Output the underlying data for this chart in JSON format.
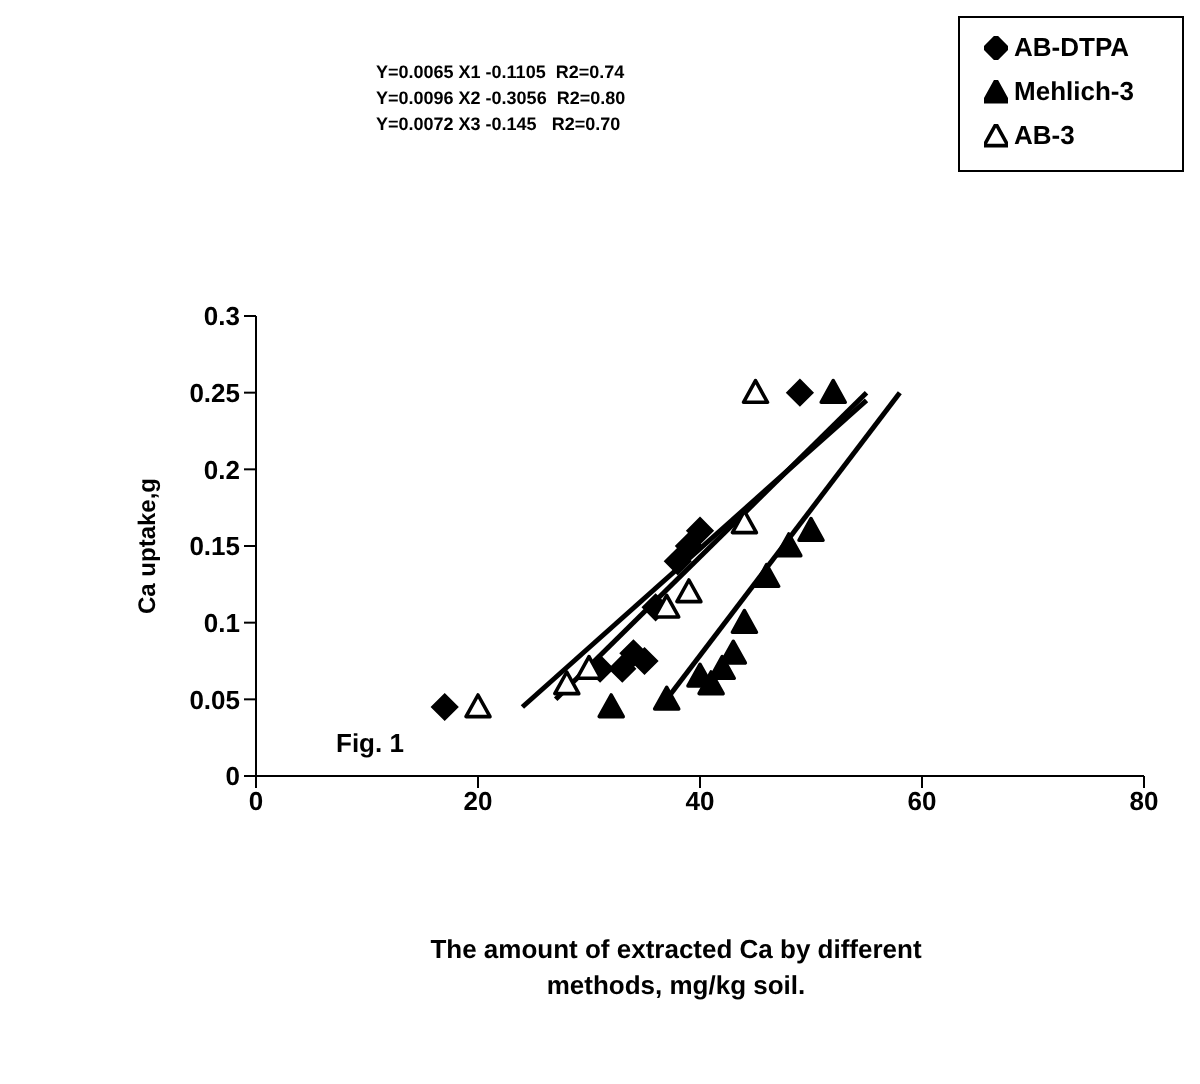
{
  "chart_data": {
    "type": "scatter",
    "xlabel": "The amount of extracted Ca by different methods, mg/kg soil.",
    "ylabel": "Ca uptake,g",
    "annotations": [
      "Y=0.0065 X1 -0.1105  R2=0.74",
      "Y=0.0096 X2 -0.3056  R2=0.80",
      "Y=0.0072 X3 -0.145   R2=0.70",
      "Fig. 1"
    ],
    "xlim": [
      0,
      80
    ],
    "xticks": [
      0,
      20,
      40,
      60,
      80
    ],
    "ylim": [
      0,
      0.3
    ],
    "yticks": [
      0,
      0.05,
      0.1,
      0.15,
      0.2,
      0.25,
      0.3
    ],
    "grid": false,
    "legend": "top right",
    "series": [
      {
        "name": "AB-DTPA",
        "color": "#000000",
        "marker": "diamond",
        "x": [
          17,
          31,
          33,
          34,
          35,
          36,
          38,
          39,
          40,
          49
        ],
        "values": [
          0.045,
          0.07,
          0.07,
          0.08,
          0.075,
          0.11,
          0.14,
          0.15,
          0.16,
          0.25
        ]
      },
      {
        "name": "Mehlich-3",
        "color": "#000000",
        "marker": "triangle",
        "x": [
          32,
          37,
          40,
          41,
          42,
          43,
          44,
          46,
          48,
          50,
          52
        ],
        "values": [
          0.045,
          0.05,
          0.065,
          0.06,
          0.07,
          0.08,
          0.1,
          0.13,
          0.15,
          0.16,
          0.25
        ]
      },
      {
        "name": "AB-3",
        "color": "#000000",
        "marker": "triangle-open",
        "x": [
          20,
          28,
          30,
          37,
          39,
          44,
          45
        ],
        "values": [
          0.045,
          0.06,
          0.07,
          0.11,
          0.12,
          0.165,
          0.25
        ]
      },
      {
        "type": "line",
        "color": "#000000",
        "marker": "none",
        "x": [
          24,
          55
        ],
        "values": [
          0.045,
          0.245
        ]
      },
      {
        "type": "line",
        "color": "#000000",
        "marker": "none",
        "x": [
          37,
          58
        ],
        "values": [
          0.05,
          0.25
        ]
      },
      {
        "type": "line",
        "color": "#000000",
        "marker": "none",
        "x": [
          27,
          55
        ],
        "values": [
          0.05,
          0.25
        ]
      }
    ]
  }
}
